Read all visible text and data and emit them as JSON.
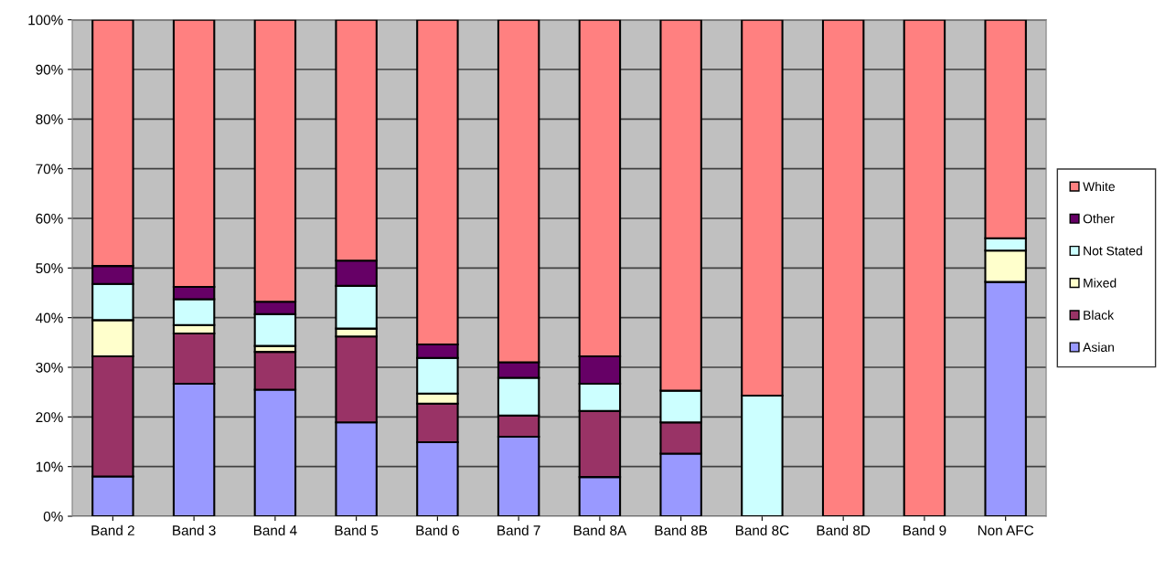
{
  "chart_data": {
    "type": "bar",
    "stacked": true,
    "categories": [
      "Band 2",
      "Band 3",
      "Band 4",
      "Band 5",
      "Band 6",
      "Band 7",
      "Band 8A",
      "Band 8B",
      "Band 8C",
      "Band 8D",
      "Band 9",
      "Non AFC"
    ],
    "series": [
      {
        "name": "Asian",
        "color": "#9999ff",
        "values": [
          8.0,
          26.7,
          25.5,
          18.9,
          14.9,
          16.0,
          7.9,
          12.6,
          0,
          0,
          0,
          47.2
        ]
      },
      {
        "name": "Black",
        "color": "#993366",
        "values": [
          24.2,
          10.1,
          7.6,
          17.3,
          7.8,
          4.3,
          13.3,
          6.3,
          0,
          0,
          0,
          0
        ]
      },
      {
        "name": "Mixed",
        "color": "#ffffcc",
        "values": [
          7.3,
          1.7,
          1.2,
          1.6,
          2.0,
          0,
          0,
          0,
          0,
          0,
          0,
          6.3
        ]
      },
      {
        "name": "Not Stated",
        "color": "#ccffff",
        "values": [
          7.3,
          5.2,
          6.4,
          8.6,
          7.2,
          7.6,
          5.5,
          6.4,
          24.3,
          0,
          0,
          2.5
        ]
      },
      {
        "name": "Other",
        "color": "#660066",
        "values": [
          3.6,
          2.5,
          2.5,
          5.1,
          2.7,
          3.1,
          5.5,
          0,
          0,
          0,
          0,
          0
        ]
      },
      {
        "name": "White",
        "color": "#ff8080",
        "values": [
          49.6,
          53.8,
          56.8,
          48.5,
          65.4,
          69.0,
          67.8,
          74.7,
          75.7,
          100,
          100,
          44.0
        ]
      }
    ],
    "ylim": [
      0,
      100
    ],
    "yticks": [
      {
        "value": 0,
        "label": "0%"
      },
      {
        "value": 10,
        "label": "10%"
      },
      {
        "value": 20,
        "label": "20%"
      },
      {
        "value": 30,
        "label": "30%"
      },
      {
        "value": 40,
        "label": "40%"
      },
      {
        "value": 50,
        "label": "50%"
      },
      {
        "value": 60,
        "label": "60%"
      },
      {
        "value": 70,
        "label": "70%"
      },
      {
        "value": 80,
        "label": "80%"
      },
      {
        "value": 90,
        "label": "90%"
      },
      {
        "value": 100,
        "label": "100%"
      }
    ],
    "grid": "y",
    "legend": "right"
  }
}
